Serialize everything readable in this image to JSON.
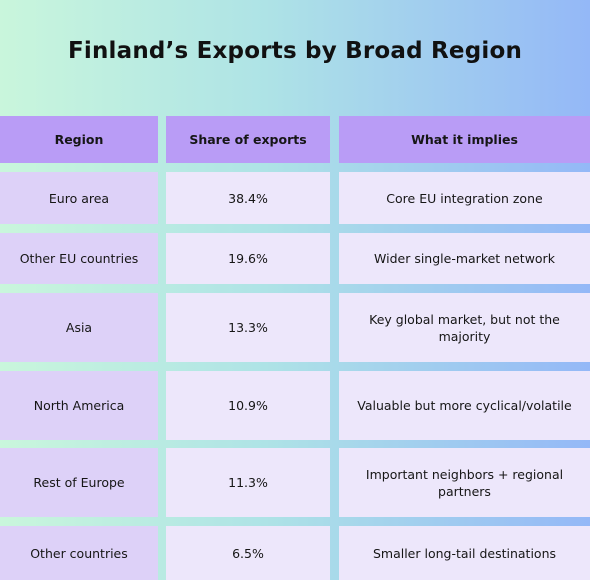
{
  "title": "Finland’s Exports by Broad Region",
  "table": {
    "header": [
      "Region",
      "Share of exports",
      "What it implies"
    ],
    "rows": [
      [
        "Euro area",
        "38.4%",
        "Core EU integration zone"
      ],
      [
        "Other EU countries",
        "19.6%",
        "Wider single-market network"
      ],
      [
        "Asia",
        "13.3%",
        "Key global market, but not the majority"
      ],
      [
        "North America",
        "10.9%",
        "Valuable but more cyclical/volatile"
      ],
      [
        "Rest of Europe",
        "11.3%",
        "Important neighbors + regional partners"
      ],
      [
        "Other countries",
        "6.5%",
        "Smaller long-tail destinations"
      ]
    ]
  }
}
